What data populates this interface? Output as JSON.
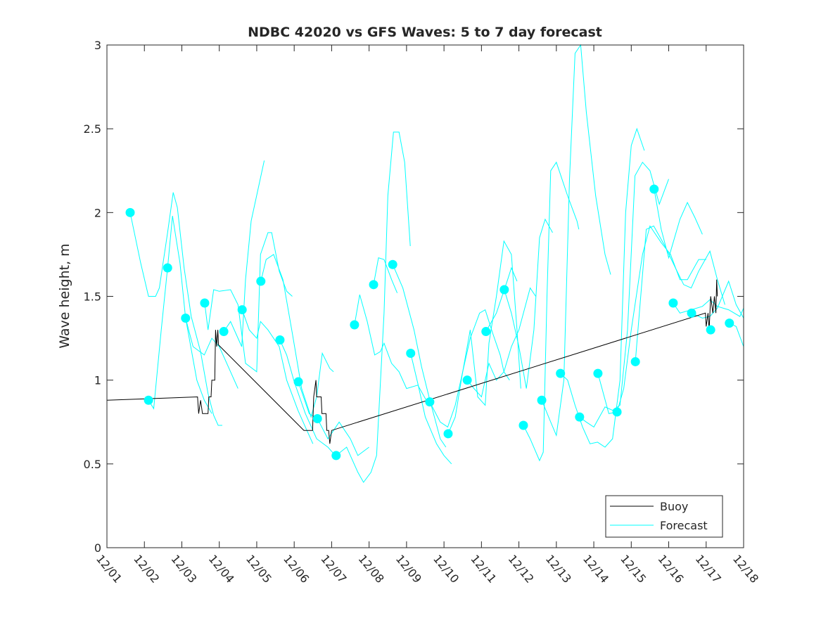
{
  "chart_data": {
    "type": "line",
    "title": "NDBC 42020 vs GFS Waves: 5 to 7 day forecast",
    "xlabel": "",
    "ylabel": "Wave height, m",
    "xlim": [
      1,
      18
    ],
    "ylim": [
      0,
      3
    ],
    "x_unit": "day of December",
    "xtick_values": [
      1,
      2,
      3,
      4,
      5,
      6,
      7,
      8,
      9,
      10,
      11,
      12,
      13,
      14,
      15,
      16,
      17,
      18
    ],
    "xtick_labels": [
      "12/01",
      "12/02",
      "12/03",
      "12/04",
      "12/05",
      "12/06",
      "12/07",
      "12/08",
      "12/09",
      "12/10",
      "12/11",
      "12/12",
      "12/13",
      "12/14",
      "12/15",
      "12/16",
      "12/17",
      "12/18"
    ],
    "ytick_values": [
      0,
      0.5,
      1,
      1.5,
      2,
      2.5,
      3
    ],
    "ytick_labels": [
      "0",
      "0.5",
      "1",
      "1.5",
      "2",
      "2.5",
      "3"
    ],
    "grid": false,
    "legend": {
      "placement": "bottom-right",
      "entries": [
        "Buoy",
        "Forecast"
      ]
    },
    "colors": {
      "buoy": "#000000",
      "forecast": "#00ffff"
    },
    "buoy": [
      [
        1,
        0.88
      ],
      [
        3.42,
        0.9
      ],
      [
        3.45,
        0.8
      ],
      [
        3.5,
        0.88
      ],
      [
        3.55,
        0.8
      ],
      [
        3.7,
        0.8
      ],
      [
        3.72,
        0.9
      ],
      [
        3.78,
        0.9
      ],
      [
        3.8,
        1.0
      ],
      [
        3.88,
        1.0
      ],
      [
        3.9,
        1.3
      ],
      [
        3.93,
        1.2
      ],
      [
        3.96,
        1.3
      ],
      [
        3.98,
        1.21
      ],
      [
        6.26,
        0.7
      ],
      [
        6.49,
        0.7
      ],
      [
        6.52,
        0.9
      ],
      [
        6.58,
        1.0
      ],
      [
        6.6,
        0.9
      ],
      [
        6.72,
        0.9
      ],
      [
        6.74,
        0.8
      ],
      [
        6.85,
        0.8
      ],
      [
        6.87,
        0.7
      ],
      [
        6.92,
        0.7
      ],
      [
        6.95,
        0.62
      ],
      [
        7.0,
        0.7
      ],
      [
        16.98,
        1.4
      ],
      [
        17.0,
        1.32
      ],
      [
        17.05,
        1.4
      ],
      [
        17.08,
        1.3
      ],
      [
        17.12,
        1.5
      ],
      [
        17.18,
        1.4
      ],
      [
        17.22,
        1.5
      ],
      [
        17.26,
        1.4
      ],
      [
        17.28,
        1.6
      ],
      [
        17.3,
        1.5
      ]
    ],
    "forecast_points": [
      [
        1.62,
        2.0
      ],
      [
        2.11,
        0.88
      ],
      [
        2.62,
        1.67
      ],
      [
        3.1,
        1.37
      ],
      [
        3.61,
        1.46
      ],
      [
        4.12,
        1.29
      ],
      [
        4.61,
        1.42
      ],
      [
        5.11,
        1.59
      ],
      [
        5.62,
        1.24
      ],
      [
        6.11,
        0.99
      ],
      [
        6.62,
        0.77
      ],
      [
        7.12,
        0.55
      ],
      [
        7.61,
        1.33
      ],
      [
        8.12,
        1.57
      ],
      [
        8.63,
        1.69
      ],
      [
        9.11,
        1.16
      ],
      [
        9.62,
        0.87
      ],
      [
        10.11,
        0.68
      ],
      [
        10.62,
        1.0
      ],
      [
        11.12,
        1.29
      ],
      [
        11.61,
        1.54
      ],
      [
        12.12,
        0.73
      ],
      [
        12.61,
        0.88
      ],
      [
        13.11,
        1.04
      ],
      [
        13.62,
        0.78
      ],
      [
        14.11,
        1.04
      ],
      [
        14.62,
        0.81
      ],
      [
        15.11,
        1.11
      ],
      [
        15.61,
        2.14
      ],
      [
        16.12,
        1.46
      ],
      [
        16.61,
        1.4
      ],
      [
        17.12,
        1.3
      ],
      [
        17.62,
        1.34
      ]
    ],
    "forecast_traces": [
      [
        [
          1.62,
          2.0
        ],
        [
          1.9,
          1.7
        ],
        [
          2.11,
          1.5
        ],
        [
          2.3,
          1.5
        ],
        [
          2.4,
          1.55
        ],
        [
          2.62,
          1.88
        ],
        [
          2.77,
          2.12
        ],
        [
          2.88,
          2.03
        ],
        [
          3.06,
          1.67
        ],
        [
          3.25,
          1.38
        ],
        [
          3.5,
          1.17
        ],
        [
          3.7,
          0.92
        ],
        [
          3.85,
          0.79
        ],
        [
          3.97,
          0.73
        ],
        [
          4.08,
          0.73
        ]
      ],
      [
        [
          2.11,
          0.88
        ],
        [
          2.25,
          0.83
        ],
        [
          2.45,
          1.3
        ],
        [
          2.62,
          1.67
        ],
        [
          2.75,
          1.98
        ],
        [
          2.95,
          1.7
        ],
        [
          3.1,
          1.37
        ],
        [
          3.4,
          1.0
        ],
        [
          3.6,
          0.88
        ],
        [
          3.8,
          0.8
        ]
      ],
      [
        [
          3.1,
          1.37
        ],
        [
          3.3,
          1.2
        ],
        [
          3.6,
          1.15
        ],
        [
          3.8,
          1.25
        ],
        [
          4.0,
          1.2
        ],
        [
          4.3,
          1.05
        ],
        [
          4.5,
          0.95
        ]
      ],
      [
        [
          3.61,
          1.46
        ],
        [
          3.7,
          1.3
        ],
        [
          3.85,
          1.54
        ],
        [
          4.0,
          1.53
        ],
        [
          4.3,
          1.54
        ],
        [
          4.5,
          1.45
        ],
        [
          4.7,
          1.1
        ],
        [
          5.0,
          1.05
        ],
        [
          5.1,
          1.75
        ],
        [
          5.3,
          1.88
        ],
        [
          5.4,
          1.88
        ],
        [
          5.6,
          1.65
        ],
        [
          5.8,
          1.53
        ],
        [
          5.95,
          1.5
        ]
      ],
      [
        [
          4.12,
          1.29
        ],
        [
          4.3,
          1.35
        ],
        [
          4.6,
          1.2
        ],
        [
          4.7,
          1.6
        ],
        [
          4.85,
          1.95
        ],
        [
          5.2,
          2.31
        ]
      ],
      [
        [
          4.61,
          1.42
        ],
        [
          4.8,
          1.3
        ],
        [
          5.0,
          1.25
        ],
        [
          5.1,
          1.35
        ],
        [
          5.3,
          1.3
        ],
        [
          5.6,
          1.2
        ],
        [
          5.8,
          1.0
        ],
        [
          6.1,
          0.82
        ],
        [
          6.3,
          0.72
        ],
        [
          6.5,
          0.62
        ]
      ],
      [
        [
          5.11,
          1.59
        ],
        [
          5.25,
          1.72
        ],
        [
          5.45,
          1.75
        ],
        [
          5.7,
          1.6
        ],
        [
          5.95,
          1.28
        ],
        [
          6.2,
          0.95
        ],
        [
          6.45,
          0.78
        ],
        [
          6.6,
          0.9
        ],
        [
          6.75,
          1.16
        ],
        [
          6.95,
          1.07
        ],
        [
          7.05,
          1.05
        ]
      ],
      [
        [
          5.62,
          1.24
        ],
        [
          5.8,
          1.15
        ],
        [
          6.0,
          0.99
        ],
        [
          6.3,
          0.8
        ],
        [
          6.6,
          0.65
        ],
        [
          6.9,
          0.6
        ],
        [
          7.1,
          0.55
        ]
      ],
      [
        [
          6.11,
          0.99
        ],
        [
          6.4,
          0.8
        ],
        [
          6.62,
          0.77
        ],
        [
          6.9,
          0.65
        ],
        [
          7.2,
          0.75
        ],
        [
          7.5,
          0.65
        ],
        [
          7.7,
          0.55
        ],
        [
          8.0,
          0.6
        ]
      ],
      [
        [
          7.12,
          0.55
        ],
        [
          7.4,
          0.6
        ],
        [
          7.7,
          0.45
        ],
        [
          7.85,
          0.39
        ],
        [
          8.05,
          0.45
        ],
        [
          8.2,
          0.55
        ],
        [
          8.4,
          1.4
        ],
        [
          8.5,
          2.1
        ],
        [
          8.65,
          2.48
        ],
        [
          8.8,
          2.48
        ],
        [
          8.95,
          2.3
        ],
        [
          9.1,
          1.8
        ]
      ],
      [
        [
          7.61,
          1.33
        ],
        [
          7.75,
          1.51
        ],
        [
          7.95,
          1.35
        ],
        [
          8.15,
          1.15
        ],
        [
          8.3,
          1.17
        ],
        [
          8.4,
          1.22
        ],
        [
          8.6,
          1.1
        ],
        [
          8.8,
          1.05
        ],
        [
          9.0,
          0.95
        ],
        [
          9.3,
          0.97
        ],
        [
          9.6,
          0.85
        ]
      ],
      [
        [
          8.12,
          1.57
        ],
        [
          8.25,
          1.73
        ],
        [
          8.4,
          1.72
        ],
        [
          8.6,
          1.6
        ],
        [
          8.75,
          1.52
        ]
      ],
      [
        [
          8.63,
          1.69
        ],
        [
          8.9,
          1.55
        ],
        [
          9.2,
          1.3
        ],
        [
          9.4,
          1.08
        ],
        [
          9.6,
          0.9
        ],
        [
          9.9,
          0.65
        ],
        [
          10.05,
          0.6
        ]
      ],
      [
        [
          9.11,
          1.16
        ],
        [
          9.3,
          0.98
        ],
        [
          9.5,
          0.78
        ],
        [
          9.8,
          0.62
        ],
        [
          10.0,
          0.55
        ],
        [
          10.2,
          0.5
        ]
      ],
      [
        [
          9.62,
          0.87
        ],
        [
          9.9,
          0.75
        ],
        [
          10.1,
          0.72
        ],
        [
          10.3,
          0.85
        ],
        [
          10.5,
          1.05
        ],
        [
          10.7,
          1.25
        ],
        [
          10.95,
          1.4
        ],
        [
          11.1,
          1.42
        ],
        [
          11.3,
          1.28
        ],
        [
          11.5,
          1.15
        ],
        [
          11.6,
          1.05
        ],
        [
          11.75,
          1.0
        ]
      ],
      [
        [
          10.11,
          0.68
        ],
        [
          10.3,
          0.78
        ],
        [
          10.5,
          1.05
        ],
        [
          10.7,
          1.3
        ],
        [
          10.9,
          0.9
        ],
        [
          11.1,
          0.85
        ],
        [
          11.2,
          1.22
        ],
        [
          11.4,
          1.5
        ],
        [
          11.6,
          1.83
        ],
        [
          11.8,
          1.75
        ],
        [
          11.95,
          1.3
        ],
        [
          12.05,
          0.95
        ]
      ],
      [
        [
          10.62,
          1.0
        ],
        [
          10.8,
          0.95
        ],
        [
          11.0,
          0.9
        ],
        [
          11.2,
          1.1
        ],
        [
          11.4,
          1.0
        ],
        [
          11.6,
          1.05
        ],
        [
          11.8,
          1.2
        ],
        [
          12.0,
          1.3
        ],
        [
          12.3,
          1.55
        ],
        [
          12.45,
          1.5
        ]
      ],
      [
        [
          11.12,
          1.29
        ],
        [
          11.4,
          1.4
        ],
        [
          11.7,
          1.6
        ],
        [
          11.8,
          1.67
        ],
        [
          11.95,
          1.59
        ]
      ],
      [
        [
          11.61,
          1.54
        ],
        [
          11.8,
          1.4
        ],
        [
          12.0,
          1.2
        ],
        [
          12.2,
          0.95
        ],
        [
          12.4,
          1.3
        ],
        [
          12.55,
          1.85
        ],
        [
          12.7,
          1.96
        ],
        [
          12.9,
          1.88
        ]
      ],
      [
        [
          12.12,
          0.73
        ],
        [
          12.3,
          0.65
        ],
        [
          12.55,
          0.52
        ],
        [
          12.65,
          0.57
        ],
        [
          12.75,
          1.5
        ],
        [
          12.85,
          2.25
        ],
        [
          13.0,
          2.3
        ],
        [
          13.3,
          2.1
        ],
        [
          13.55,
          1.95
        ],
        [
          13.6,
          1.9
        ]
      ],
      [
        [
          12.61,
          0.88
        ],
        [
          12.85,
          0.75
        ],
        [
          13.0,
          0.67
        ],
        [
          13.2,
          1.0
        ],
        [
          13.35,
          2.2
        ],
        [
          13.5,
          2.95
        ],
        [
          13.65,
          3.0
        ],
        [
          13.8,
          2.6
        ],
        [
          14.05,
          2.1
        ],
        [
          14.3,
          1.75
        ],
        [
          14.45,
          1.63
        ]
      ],
      [
        [
          13.11,
          1.04
        ],
        [
          13.3,
          1.0
        ],
        [
          13.5,
          0.85
        ],
        [
          13.7,
          0.72
        ],
        [
          13.9,
          0.62
        ],
        [
          14.1,
          0.63
        ],
        [
          14.3,
          0.6
        ],
        [
          14.5,
          0.65
        ],
        [
          14.7,
          1.0
        ],
        [
          14.85,
          2.0
        ],
        [
          15.0,
          2.4
        ],
        [
          15.15,
          2.5
        ],
        [
          15.35,
          2.37
        ]
      ],
      [
        [
          13.62,
          0.78
        ],
        [
          13.8,
          0.75
        ],
        [
          14.0,
          0.72
        ],
        [
          14.3,
          0.84
        ],
        [
          14.5,
          0.82
        ],
        [
          14.7,
          0.85
        ],
        [
          14.9,
          1.3
        ],
        [
          15.1,
          2.22
        ],
        [
          15.3,
          2.3
        ],
        [
          15.5,
          2.25
        ],
        [
          15.75,
          2.05
        ],
        [
          16.0,
          2.2
        ]
      ],
      [
        [
          14.11,
          1.04
        ],
        [
          14.4,
          0.8
        ],
        [
          14.62,
          0.81
        ],
        [
          14.8,
          0.95
        ],
        [
          15.0,
          1.3
        ],
        [
          15.3,
          1.75
        ],
        [
          15.5,
          1.92
        ],
        [
          15.8,
          1.82
        ],
        [
          16.05,
          1.75
        ],
        [
          16.3,
          1.6
        ],
        [
          16.5,
          1.6
        ],
        [
          16.8,
          1.72
        ],
        [
          17.0,
          1.72
        ]
      ],
      [
        [
          15.11,
          1.11
        ],
        [
          15.4,
          1.9
        ],
        [
          15.6,
          1.92
        ],
        [
          15.9,
          1.8
        ],
        [
          16.2,
          1.66
        ],
        [
          16.4,
          1.57
        ],
        [
          16.6,
          1.55
        ],
        [
          16.8,
          1.65
        ],
        [
          17.1,
          1.77
        ],
        [
          17.3,
          1.6
        ],
        [
          17.5,
          1.45
        ]
      ],
      [
        [
          15.61,
          2.14
        ],
        [
          15.8,
          1.9
        ],
        [
          16.0,
          1.73
        ],
        [
          16.3,
          1.96
        ],
        [
          16.5,
          2.06
        ],
        [
          16.7,
          1.97
        ],
        [
          16.9,
          1.87
        ]
      ],
      [
        [
          16.12,
          1.46
        ],
        [
          16.3,
          1.4
        ],
        [
          16.6,
          1.42
        ],
        [
          16.9,
          1.44
        ],
        [
          17.1,
          1.48
        ],
        [
          17.3,
          1.44
        ],
        [
          17.6,
          1.42
        ],
        [
          17.9,
          1.38
        ],
        [
          18.0,
          1.43
        ]
      ],
      [
        [
          16.61,
          1.4
        ],
        [
          16.9,
          1.37
        ],
        [
          17.1,
          1.38
        ],
        [
          17.3,
          1.43
        ],
        [
          17.6,
          1.59
        ],
        [
          17.8,
          1.45
        ],
        [
          18.0,
          1.37
        ]
      ],
      [
        [
          17.62,
          1.34
        ],
        [
          17.8,
          1.32
        ],
        [
          18.0,
          1.2
        ]
      ]
    ]
  }
}
